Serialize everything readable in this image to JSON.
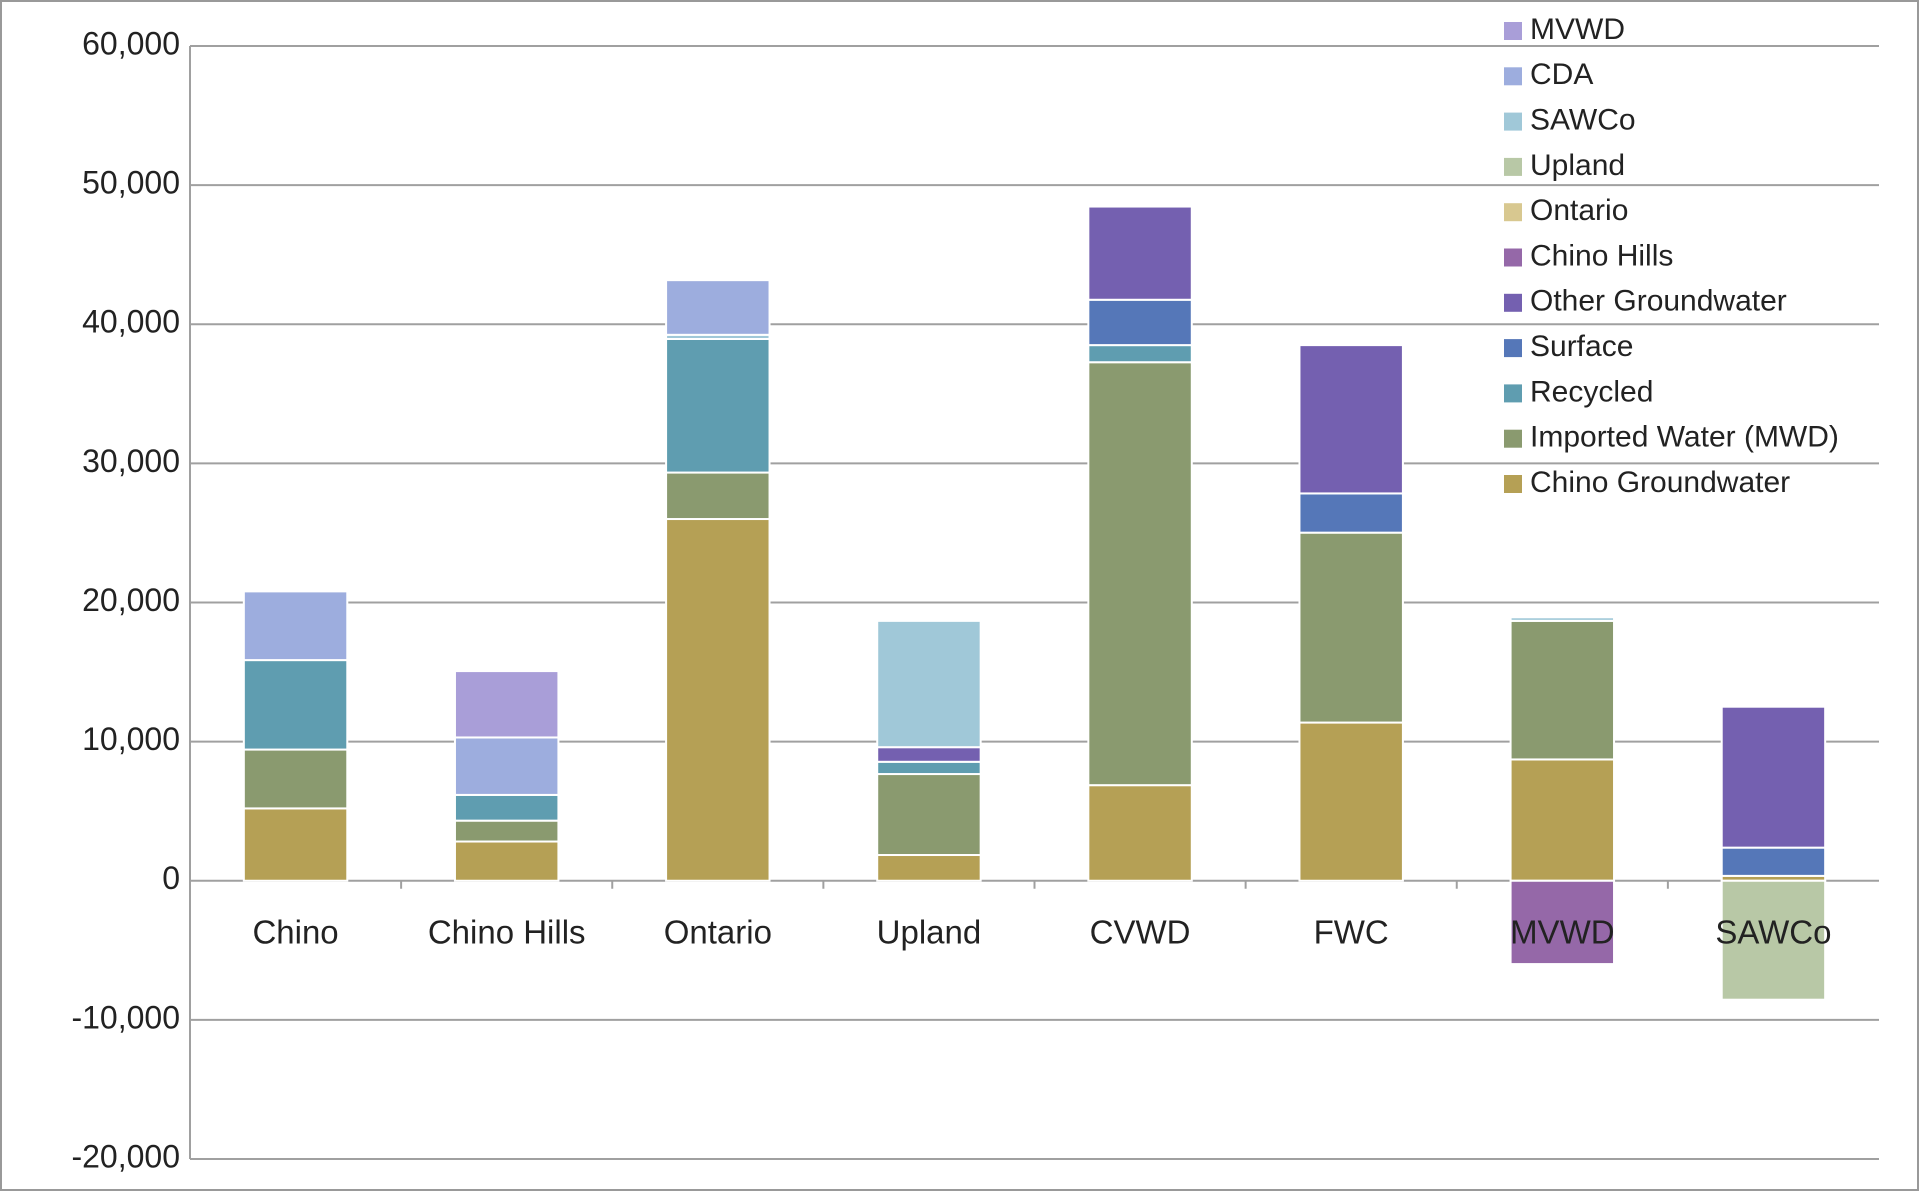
{
  "chart_data": {
    "type": "stacked_bar",
    "categories": [
      "Chino",
      "Chino Hills",
      "Ontario",
      "Upland",
      "CVWD",
      "FWC",
      "MVWD",
      "SAWCo"
    ],
    "series": [
      {
        "name": "Chino Groundwater",
        "color": "#b5a055",
        "values": [
          5200,
          2820,
          26000,
          1850,
          6870,
          11370,
          8720,
          350
        ]
      },
      {
        "name": "Imported Water (MWD)",
        "color": "#8a9a6f",
        "values": [
          4230,
          1500,
          3340,
          5820,
          30400,
          13650,
          9960,
          0
        ]
      },
      {
        "name": "Recycled",
        "color": "#5f9db0",
        "values": [
          6430,
          1850,
          9600,
          880,
          1230,
          0,
          0,
          0
        ]
      },
      {
        "name": "Surface",
        "color": "#5577b8",
        "values": [
          0,
          0,
          0,
          0,
          3260,
          2820,
          0,
          2030
        ]
      },
      {
        "name": "Other Groundwater",
        "color": "#7460b0",
        "values": [
          0,
          0,
          0,
          1050,
          6700,
          10660,
          0,
          10130
        ]
      },
      {
        "name": "Chino Hills",
        "color": "#9568a8",
        "values": [
          0,
          0,
          0,
          0,
          0,
          0,
          -5990,
          0
        ]
      },
      {
        "name": "Ontario",
        "color": "#d8c890",
        "values": [
          0,
          0,
          0,
          0,
          0,
          0,
          0,
          0
        ]
      },
      {
        "name": "Upland",
        "color": "#b8c8a6",
        "values": [
          0,
          0,
          0,
          0,
          0,
          0,
          0,
          -8550
        ]
      },
      {
        "name": "SAWCo",
        "color": "#a0c8d8",
        "values": [
          0,
          0,
          300,
          9080,
          0,
          0,
          260,
          0
        ]
      },
      {
        "name": "CDA",
        "color": "#9dadde",
        "values": [
          4940,
          4130,
          3930,
          0,
          0,
          0,
          0,
          0
        ]
      },
      {
        "name": "MVWD",
        "color": "#a99ed8",
        "values": [
          0,
          4770,
          0,
          0,
          0,
          0,
          0,
          0
        ]
      }
    ],
    "ylim": [
      -20000,
      60000
    ],
    "yticks": [
      {
        "value": -20000,
        "label": "-20,000"
      },
      {
        "value": -10000,
        "label": "-10,000"
      },
      0,
      {
        "value": 10000,
        "label": "10,000"
      },
      {
        "value": 20000,
        "label": "20,000"
      },
      {
        "value": 30000,
        "label": "30,000"
      },
      {
        "value": 40000,
        "label": "40,000"
      },
      {
        "value": 50000,
        "label": "50,000"
      },
      {
        "value": 60000,
        "label": "60,000"
      }
    ],
    "grid": true,
    "legend": "top-right"
  }
}
